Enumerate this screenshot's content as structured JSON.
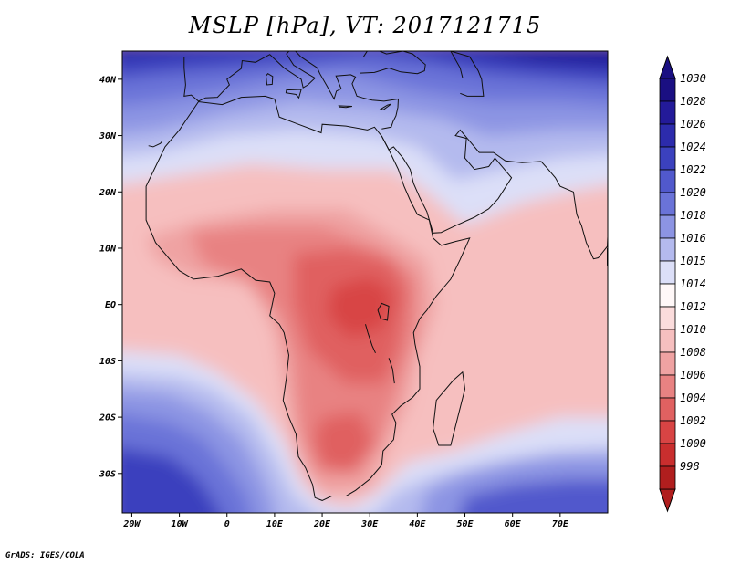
{
  "chart_data": {
    "type": "heatmap",
    "title": "MSLP [hPa], VT: 2017121715",
    "variable": "MSLP",
    "units": "hPa",
    "valid_time": "2017121715",
    "x_axis": {
      "range": [
        -22,
        80
      ],
      "ticks": [
        {
          "value": -20,
          "label": "20W"
        },
        {
          "value": -10,
          "label": "10W"
        },
        {
          "value": 0,
          "label": "0"
        },
        {
          "value": 10,
          "label": "10E"
        },
        {
          "value": 20,
          "label": "20E"
        },
        {
          "value": 30,
          "label": "30E"
        },
        {
          "value": 40,
          "label": "40E"
        },
        {
          "value": 50,
          "label": "50E"
        },
        {
          "value": 60,
          "label": "60E"
        },
        {
          "value": 70,
          "label": "70E"
        }
      ]
    },
    "y_axis": {
      "range": [
        -37,
        45
      ],
      "ticks": [
        {
          "value": 40,
          "label": "40N"
        },
        {
          "value": 30,
          "label": "30N"
        },
        {
          "value": 20,
          "label": "20N"
        },
        {
          "value": 10,
          "label": "10N"
        },
        {
          "value": 0,
          "label": "EQ"
        },
        {
          "value": -10,
          "label": "10S"
        },
        {
          "value": -20,
          "label": "20S"
        },
        {
          "value": -30,
          "label": "30S"
        }
      ]
    },
    "colorbar": {
      "levels": [
        {
          "label": "1030",
          "color": "#1a0f82"
        },
        {
          "label": "1028",
          "color": "#231a99"
        },
        {
          "label": "1026",
          "color": "#2c2bac"
        },
        {
          "label": "1024",
          "color": "#3b41be"
        },
        {
          "label": "1022",
          "color": "#5159cc"
        },
        {
          "label": "1020",
          "color": "#6a73d8"
        },
        {
          "label": "1018",
          "color": "#8c94e3"
        },
        {
          "label": "1016",
          "color": "#b4baee"
        },
        {
          "label": "1015",
          "color": "#dcdff8"
        },
        {
          "label": "1014",
          "color": "#fff8f8"
        },
        {
          "label": "1012",
          "color": "#fbdcdc"
        },
        {
          "label": "1010",
          "color": "#f6bfbf"
        },
        {
          "label": "1008",
          "color": "#efa2a2"
        },
        {
          "label": "1006",
          "color": "#e88282"
        },
        {
          "label": "1004",
          "color": "#e06161"
        },
        {
          "label": "1002",
          "color": "#d84444"
        },
        {
          "label": "1000",
          "color": "#c92e2e"
        },
        {
          "label": "998",
          "color": "#b01e1e"
        }
      ],
      "top_arrow_color": "#1a0f82",
      "bottom_arrow_color": "#b01e1e"
    }
  },
  "credit": "GrADS: IGES/COLA"
}
